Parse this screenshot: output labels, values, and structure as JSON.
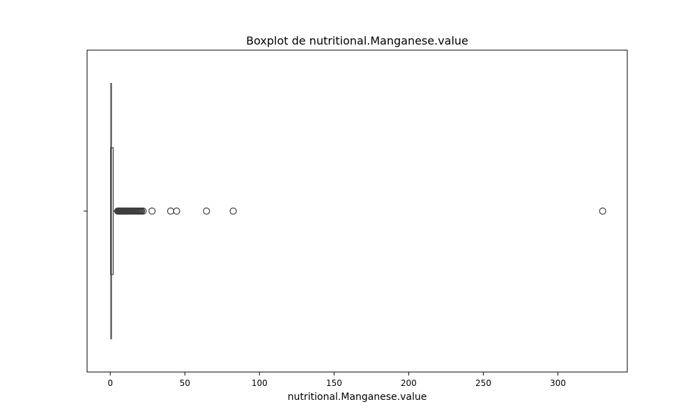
{
  "chart_data": {
    "type": "boxplot",
    "title": "Boxplot de nutritional.Manganese.value",
    "xlabel": "nutritional.Manganese.value",
    "ylabel": "",
    "orientation": "horizontal",
    "xlim": [
      -15.5,
      346.5
    ],
    "xticks": [
      0,
      50,
      100,
      150,
      200,
      250,
      300
    ],
    "xtick_labels": [
      "0",
      "50",
      "100",
      "150",
      "200",
      "250",
      "300"
    ],
    "grid": false,
    "box": {
      "q1": 0.2,
      "median": 0.6,
      "q3": 2.0,
      "whisker_low": 0.0,
      "whisker_high": 4.7
    },
    "outliers": [
      5.0,
      5.3,
      5.6,
      5.9,
      6.2,
      6.5,
      6.8,
      7.1,
      7.4,
      7.7,
      8.0,
      8.3,
      8.6,
      8.9,
      9.2,
      9.5,
      9.8,
      10.1,
      10.5,
      10.9,
      11.3,
      11.7,
      12.1,
      12.5,
      13.0,
      13.5,
      14.0,
      14.5,
      15.0,
      15.6,
      16.2,
      16.8,
      17.4,
      18.0,
      18.6,
      19.2,
      19.8,
      20.4,
      21.0,
      22.0,
      28.0,
      40.5,
      44.5,
      64.5,
      82.4,
      330.0
    ],
    "colors": {
      "box_edge": "#3f3f3f",
      "marker_edge": "#3f3f3f",
      "axes": "#000000",
      "background": "#ffffff"
    }
  }
}
